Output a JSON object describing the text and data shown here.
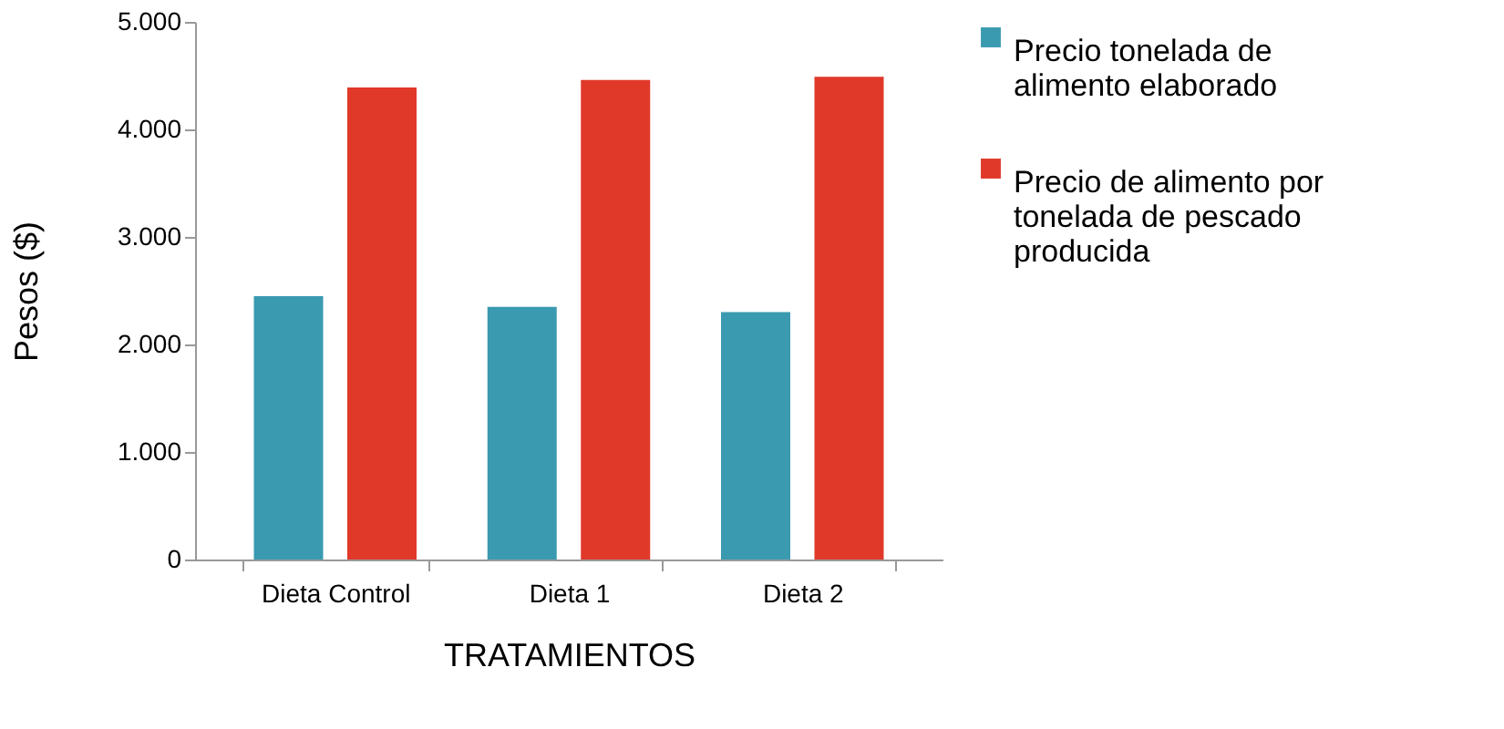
{
  "chart_data": {
    "type": "bar",
    "xlabel": "TRATAMIENTOS",
    "ylabel": "Pesos ($)",
    "categories": [
      "Dieta Control",
      "Dieta 1",
      "Dieta 2"
    ],
    "series": [
      {
        "name": "Precio tonelada de alimento elaborado",
        "color": "#3a9ab0",
        "values": [
          2450,
          2350,
          2300
        ]
      },
      {
        "name": "Precio de alimento por tonelada de pescado producida",
        "color": "#e0392a",
        "values": [
          4390,
          4460,
          4490
        ]
      }
    ],
    "ylim": [
      0,
      5000
    ],
    "yticks": [
      0,
      {
        "value": 1000,
        "label": "1.000"
      },
      {
        "value": 2000,
        "label": "2.000"
      },
      {
        "value": 3000,
        "label": "3.000"
      },
      {
        "value": 4000,
        "label": "4.000"
      },
      {
        "value": 5000,
        "label": "5.000"
      }
    ],
    "grid": false,
    "legend": "right"
  }
}
